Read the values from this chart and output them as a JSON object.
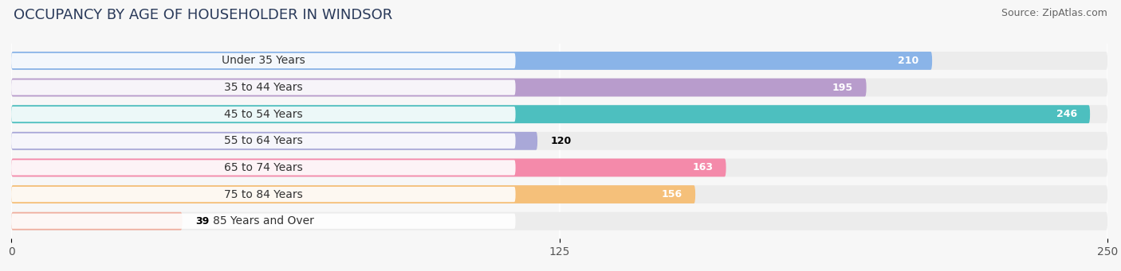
{
  "title": "OCCUPANCY BY AGE OF HOUSEHOLDER IN WINDSOR",
  "source": "Source: ZipAtlas.com",
  "categories": [
    "Under 35 Years",
    "35 to 44 Years",
    "45 to 54 Years",
    "55 to 64 Years",
    "65 to 74 Years",
    "75 to 84 Years",
    "85 Years and Over"
  ],
  "values": [
    210,
    195,
    246,
    120,
    163,
    156,
    39
  ],
  "bar_colors": [
    "#8ab4e8",
    "#b89ccc",
    "#4dbfbf",
    "#a9a8d8",
    "#f48aaa",
    "#f5c07a",
    "#f0b0a0"
  ],
  "label_colors": [
    "white",
    "white",
    "white",
    "black",
    "white",
    "white",
    "black"
  ],
  "xlim": [
    0,
    250
  ],
  "xticks": [
    0,
    125,
    250
  ],
  "background_color": "#f7f7f7",
  "bar_background_color": "#ececec",
  "title_fontsize": 13,
  "tick_fontsize": 10,
  "label_fontsize": 10,
  "value_fontsize": 9,
  "source_fontsize": 9,
  "bar_height": 0.68,
  "figsize": [
    14.06,
    3.41
  ],
  "dpi": 100
}
